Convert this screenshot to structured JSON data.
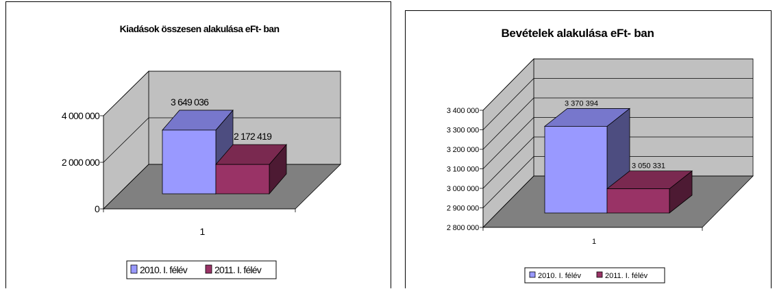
{
  "colors": {
    "series1_front": "#9999ff",
    "series1_top": "#7777cc",
    "series1_side": "#4d4d80",
    "series2_front": "#993366",
    "series2_top": "#7a2950",
    "series2_side": "#4d1a33",
    "wall": "#c0c0c0",
    "floor": "#808080"
  },
  "chart_data": [
    {
      "type": "bar",
      "title": "Kiadások összesen alakulása eFt- ban",
      "categories": [
        "1"
      ],
      "series": [
        {
          "name": "2010. I. félév",
          "values": [
            3649036
          ],
          "label": "3 649 036"
        },
        {
          "name": "2011. I. félév",
          "values": [
            2172419
          ],
          "label": "2 172 419"
        }
      ],
      "yticks": [
        "0",
        "2 000 000",
        "4 000 000"
      ],
      "ylim": [
        0,
        4000000
      ],
      "grid": true,
      "legend_position": "bottom",
      "three_d": true
    },
    {
      "type": "bar",
      "title": "Bevételek alakulása eFt- ban",
      "categories": [
        "1"
      ],
      "series": [
        {
          "name": "2010. I. félév",
          "values": [
            3370394
          ],
          "label": "3 370 394"
        },
        {
          "name": "2011. I. félév",
          "values": [
            3050331
          ],
          "label": "3 050 331"
        }
      ],
      "yticks": [
        "2 800 000",
        "2 900 000",
        "3 000 000",
        "3 100 000",
        "3 200 000",
        "3 300 000",
        "3 400 000"
      ],
      "ylim": [
        2800000,
        3400000
      ],
      "grid": true,
      "legend_position": "bottom",
      "three_d": true
    }
  ]
}
